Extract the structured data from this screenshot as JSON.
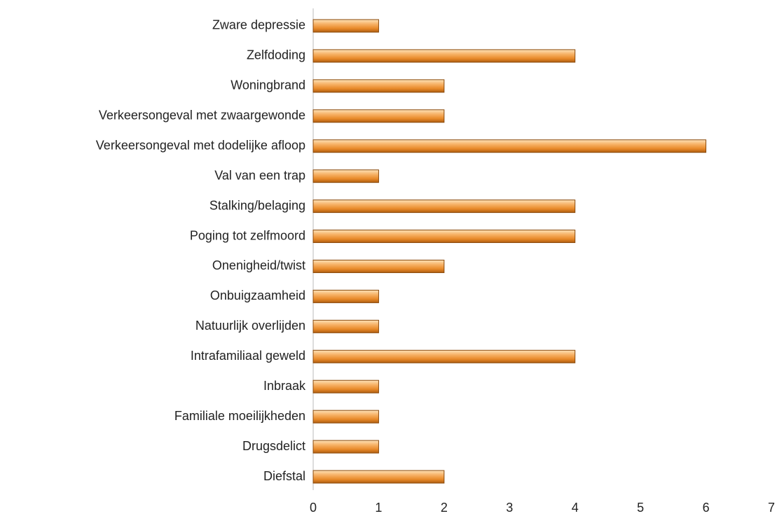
{
  "chart_data": {
    "type": "bar",
    "orientation": "horizontal",
    "categories": [
      "Zware depressie",
      "Zelfdoding",
      "Woningbrand",
      "Verkeersongeval met zwaargewonde",
      "Verkeersongeval met dodelijke afloop",
      "Val van een trap",
      "Stalking/belaging",
      "Poging tot zelfmoord",
      "Onenigheid/twist",
      "Onbuigzaamheid",
      "Natuurlijk overlijden",
      "Intrafamiliaal geweld",
      "Inbraak",
      "Familiale moeilijkheden",
      "Drugsdelict",
      "Diefstal"
    ],
    "values": [
      1,
      4,
      2,
      2,
      6,
      1,
      4,
      4,
      2,
      1,
      1,
      4,
      1,
      1,
      1,
      2
    ],
    "color": "#f0a050",
    "xlim": [
      0,
      7
    ],
    "xticks": [
      0,
      1,
      2,
      3,
      4,
      5,
      6,
      7
    ],
    "grid": false
  }
}
